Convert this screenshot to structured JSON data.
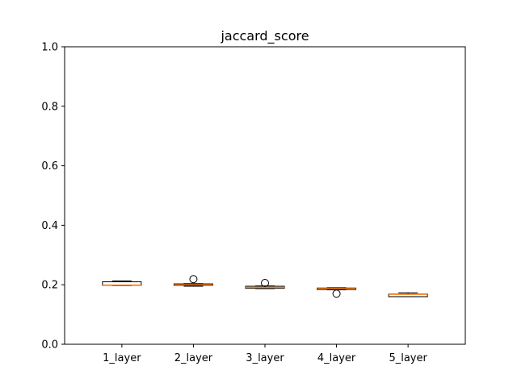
{
  "chart_data": {
    "type": "box",
    "title": "jaccard_score",
    "xlabel": "",
    "ylabel": "",
    "ylim": [
      0.0,
      1.0
    ],
    "yticks": [
      0.0,
      0.2,
      0.4,
      0.6,
      0.8,
      1.0
    ],
    "ytick_labels": [
      "0.0",
      "0.2",
      "0.4",
      "0.6",
      "0.8",
      "1.0"
    ],
    "categories": [
      "1_layer",
      "2_layer",
      "3_layer",
      "4_layer",
      "5_layer"
    ],
    "boxes": [
      {
        "whisker_low": 0.197,
        "q1": 0.198,
        "median": 0.199,
        "q3": 0.21,
        "whisker_high": 0.213,
        "outliers": []
      },
      {
        "whisker_low": 0.195,
        "q1": 0.198,
        "median": 0.2,
        "q3": 0.203,
        "whisker_high": 0.204,
        "outliers": [
          0.219
        ]
      },
      {
        "whisker_low": 0.187,
        "q1": 0.188,
        "median": 0.191,
        "q3": 0.195,
        "whisker_high": 0.196,
        "outliers": [
          0.206
        ]
      },
      {
        "whisker_low": 0.183,
        "q1": 0.184,
        "median": 0.187,
        "q3": 0.189,
        "whisker_high": 0.19,
        "outliers": [
          0.17
        ]
      },
      {
        "whisker_low": 0.16,
        "q1": 0.16,
        "median": 0.168,
        "q3": 0.169,
        "whisker_high": 0.173,
        "outliers": []
      }
    ],
    "grid": false,
    "colors": {
      "box": "#000000",
      "median": "#ff7f0e",
      "outlier": "#000000"
    }
  }
}
